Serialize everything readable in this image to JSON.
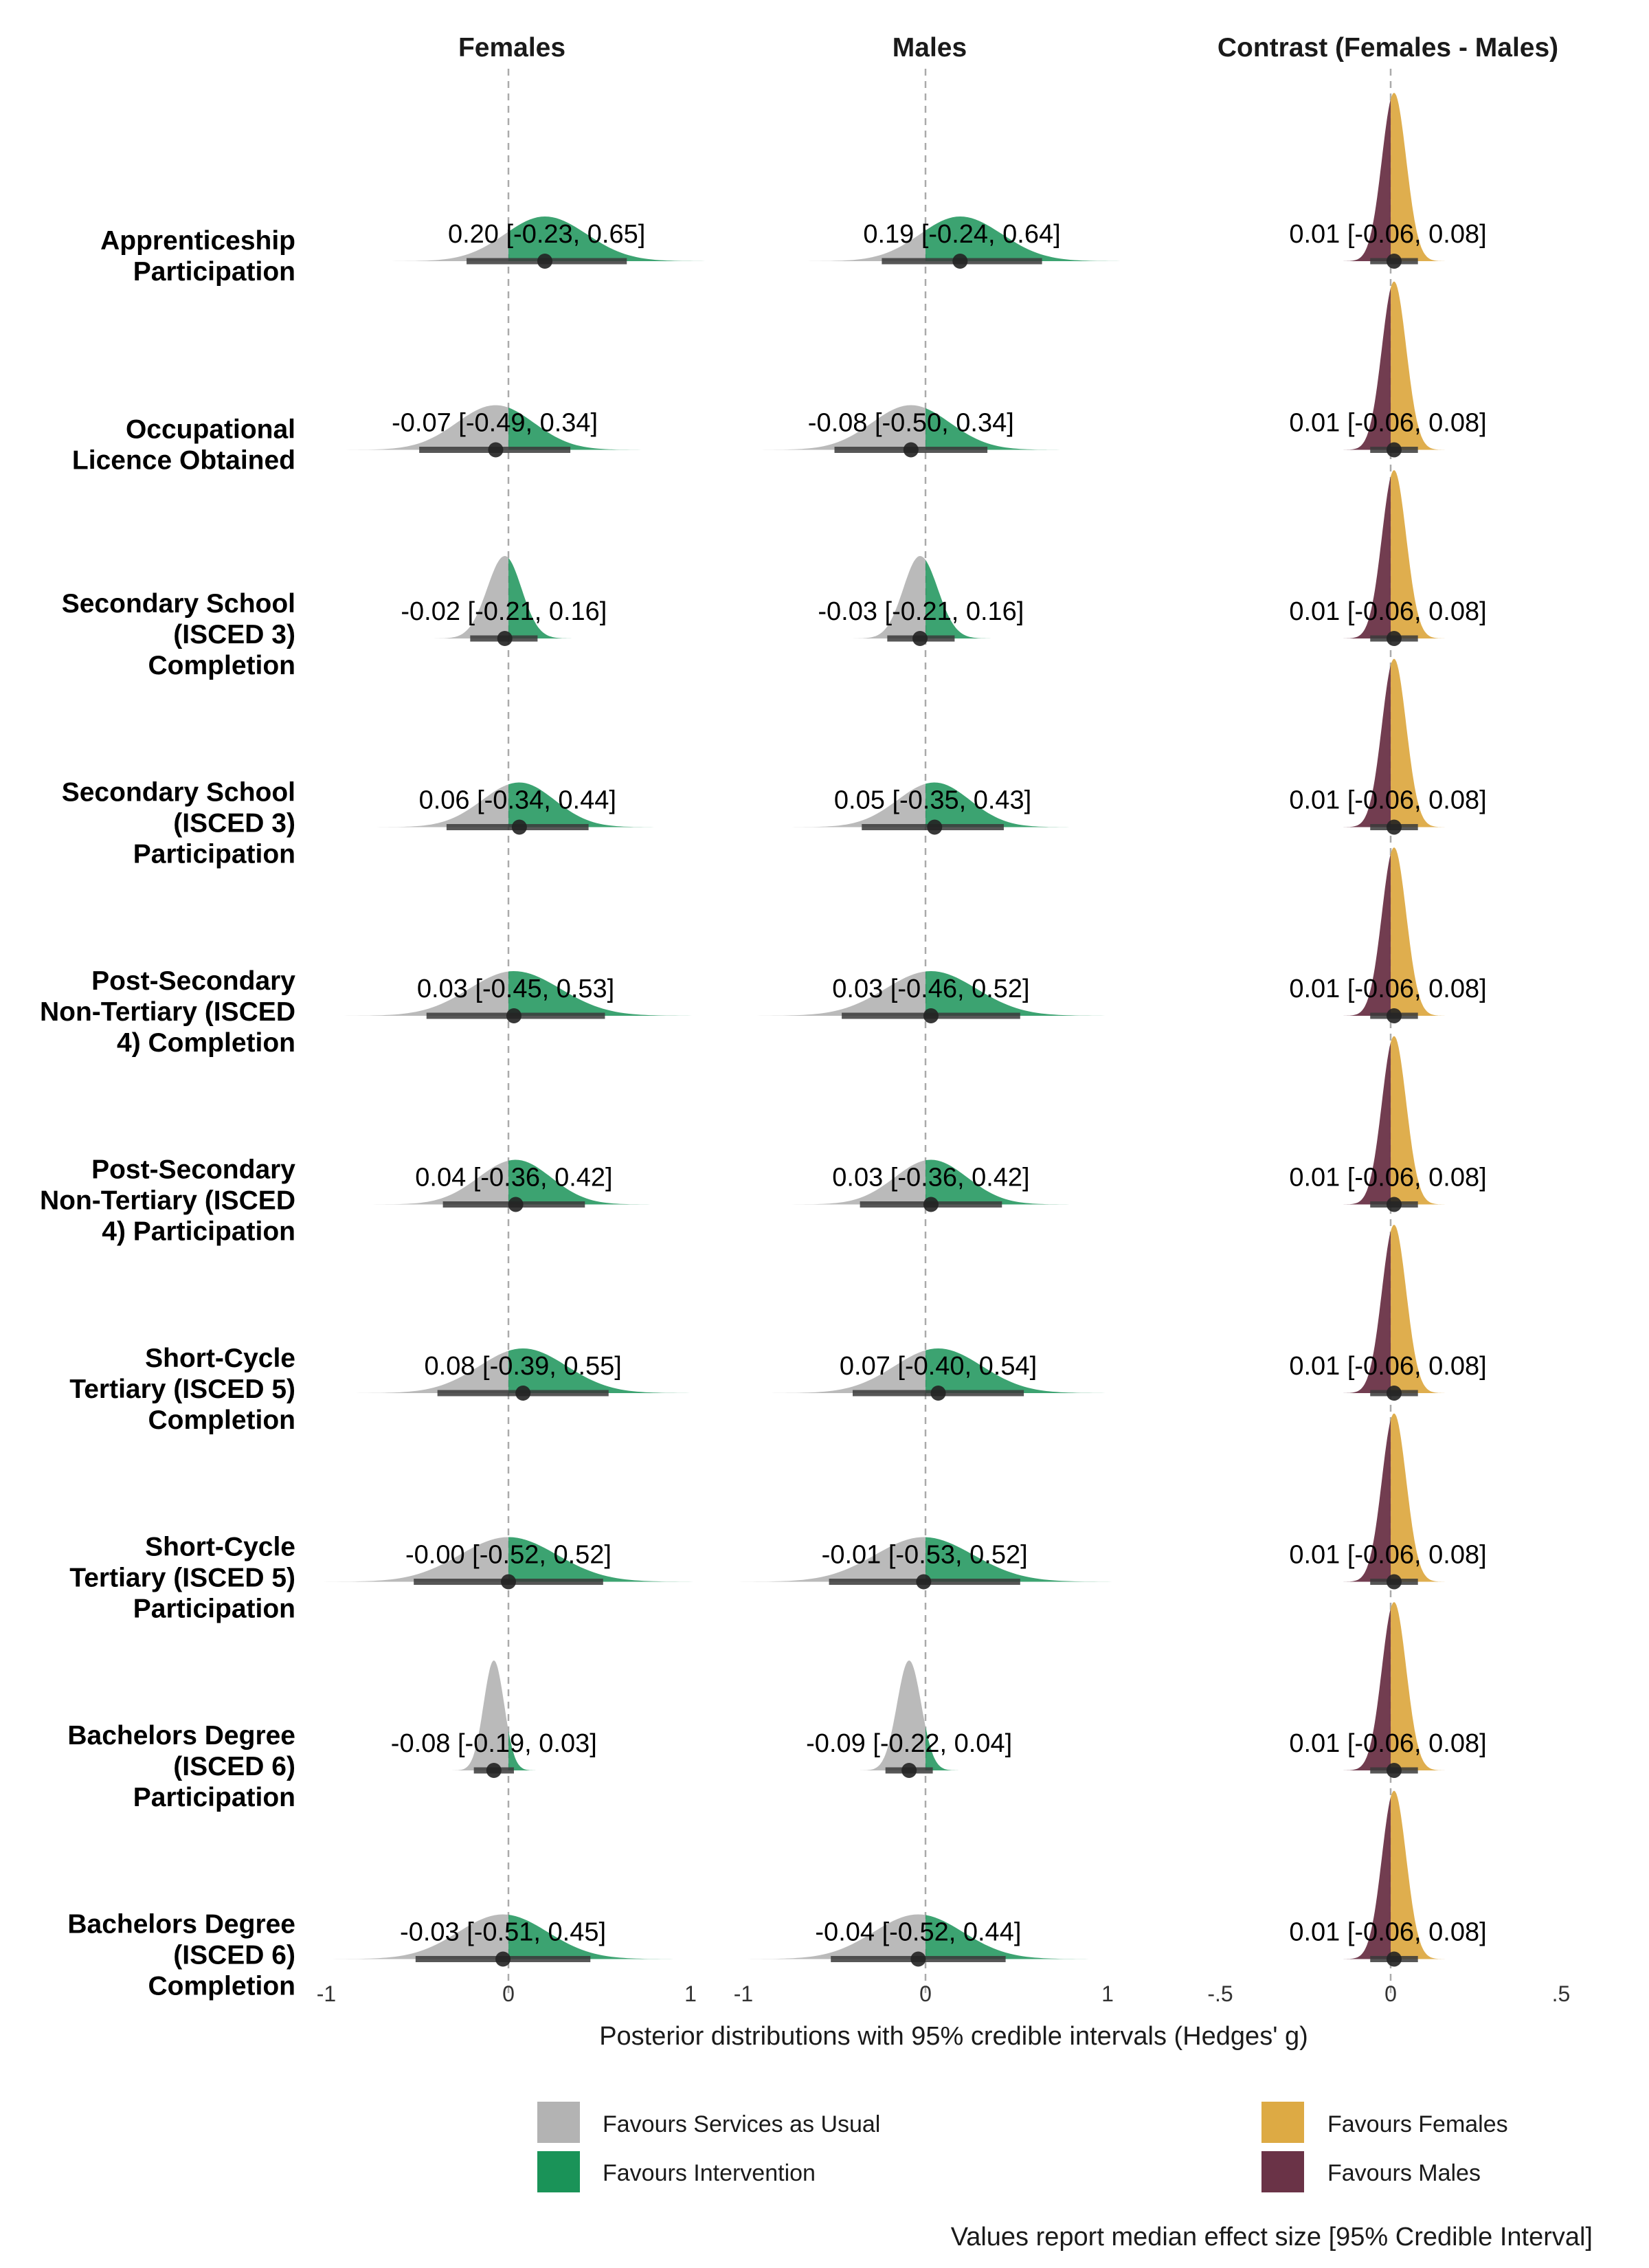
{
  "colors": {
    "services_as_usual": "#b3b3b3",
    "intervention": "#1a9358",
    "females": "#ddaa44",
    "males": "#6a3347",
    "interval": "#3a3a3a",
    "zero_line": "#aaaaaa"
  },
  "chart_data": {
    "type": "density-forest",
    "panels": [
      {
        "key": "females",
        "title": "Females",
        "xlim": [
          -1,
          1
        ],
        "ticks": [
          "-1",
          "0",
          "1"
        ],
        "tick_values": [
          -1,
          0,
          1
        ]
      },
      {
        "key": "males",
        "title": "Males",
        "xlim": [
          -1,
          1
        ],
        "ticks": [
          "-1",
          "0",
          "1"
        ],
        "tick_values": [
          -1,
          0,
          1
        ]
      },
      {
        "key": "contrast",
        "title": "Contrast (Females - Males)",
        "xlim": [
          -0.5,
          0.5
        ],
        "ticks": [
          "-.5",
          "0",
          ".5"
        ],
        "tick_values": [
          -0.5,
          0,
          0.5
        ]
      }
    ],
    "xlabel": "Posterior distributions with 95% credible intervals (Hedges' g)",
    "outcomes": [
      {
        "label": [
          "Apprenticeship",
          "Participation"
        ],
        "females": {
          "median": 0.2,
          "lo": -0.23,
          "hi": 0.65,
          "text": "0.20 [-0.23, 0.65]"
        },
        "males": {
          "median": 0.19,
          "lo": -0.24,
          "hi": 0.64,
          "text": "0.19 [-0.24, 0.64]"
        },
        "contrast": {
          "median": 0.01,
          "lo": -0.06,
          "hi": 0.08,
          "text": "0.01 [-0.06, 0.08]"
        }
      },
      {
        "label": [
          "Occupational",
          "Licence Obtained"
        ],
        "females": {
          "median": -0.07,
          "lo": -0.49,
          "hi": 0.34,
          "text": "-0.07 [-0.49, 0.34]"
        },
        "males": {
          "median": -0.08,
          "lo": -0.5,
          "hi": 0.34,
          "text": "-0.08 [-0.50, 0.34]"
        },
        "contrast": {
          "median": 0.01,
          "lo": -0.06,
          "hi": 0.08,
          "text": "0.01 [-0.06, 0.08]"
        }
      },
      {
        "label": [
          "Secondary School",
          "(ISCED 3)",
          "Completion"
        ],
        "females": {
          "median": -0.02,
          "lo": -0.21,
          "hi": 0.16,
          "text": "-0.02 [-0.21, 0.16]"
        },
        "males": {
          "median": -0.03,
          "lo": -0.21,
          "hi": 0.16,
          "text": "-0.03 [-0.21, 0.16]"
        },
        "contrast": {
          "median": 0.01,
          "lo": -0.06,
          "hi": 0.08,
          "text": "0.01 [-0.06, 0.08]"
        }
      },
      {
        "label": [
          "Secondary School",
          "(ISCED 3)",
          "Participation"
        ],
        "females": {
          "median": 0.06,
          "lo": -0.34,
          "hi": 0.44,
          "text": "0.06 [-0.34, 0.44]"
        },
        "males": {
          "median": 0.05,
          "lo": -0.35,
          "hi": 0.43,
          "text": "0.05 [-0.35, 0.43]"
        },
        "contrast": {
          "median": 0.01,
          "lo": -0.06,
          "hi": 0.08,
          "text": "0.01 [-0.06, 0.08]"
        }
      },
      {
        "label": [
          "Post-Secondary",
          "Non-Tertiary (ISCED",
          "4) Completion"
        ],
        "females": {
          "median": 0.03,
          "lo": -0.45,
          "hi": 0.53,
          "text": "0.03 [-0.45, 0.53]"
        },
        "males": {
          "median": 0.03,
          "lo": -0.46,
          "hi": 0.52,
          "text": "0.03 [-0.46, 0.52]"
        },
        "contrast": {
          "median": 0.01,
          "lo": -0.06,
          "hi": 0.08,
          "text": "0.01 [-0.06, 0.08]"
        }
      },
      {
        "label": [
          "Post-Secondary",
          "Non-Tertiary (ISCED",
          "4) Participation"
        ],
        "females": {
          "median": 0.04,
          "lo": -0.36,
          "hi": 0.42,
          "text": "0.04 [-0.36, 0.42]"
        },
        "males": {
          "median": 0.03,
          "lo": -0.36,
          "hi": 0.42,
          "text": "0.03 [-0.36, 0.42]"
        },
        "contrast": {
          "median": 0.01,
          "lo": -0.06,
          "hi": 0.08,
          "text": "0.01 [-0.06, 0.08]"
        }
      },
      {
        "label": [
          "Short-Cycle",
          "Tertiary (ISCED 5)",
          "Completion"
        ],
        "females": {
          "median": 0.08,
          "lo": -0.39,
          "hi": 0.55,
          "text": "0.08 [-0.39, 0.55]"
        },
        "males": {
          "median": 0.07,
          "lo": -0.4,
          "hi": 0.54,
          "text": "0.07 [-0.40, 0.54]"
        },
        "contrast": {
          "median": 0.01,
          "lo": -0.06,
          "hi": 0.08,
          "text": "0.01 [-0.06, 0.08]"
        }
      },
      {
        "label": [
          "Short-Cycle",
          "Tertiary (ISCED 5)",
          "Participation"
        ],
        "females": {
          "median": 0.0,
          "lo": -0.52,
          "hi": 0.52,
          "text": "-0.00 [-0.52, 0.52]"
        },
        "males": {
          "median": -0.01,
          "lo": -0.53,
          "hi": 0.52,
          "text": "-0.01 [-0.53, 0.52]"
        },
        "contrast": {
          "median": 0.01,
          "lo": -0.06,
          "hi": 0.08,
          "text": "0.01 [-0.06, 0.08]"
        }
      },
      {
        "label": [
          "Bachelors Degree",
          "(ISCED 6)",
          "Participation"
        ],
        "females": {
          "median": -0.08,
          "lo": -0.19,
          "hi": 0.03,
          "text": "-0.08 [-0.19, 0.03]"
        },
        "males": {
          "median": -0.09,
          "lo": -0.22,
          "hi": 0.04,
          "text": "-0.09 [-0.22, 0.04]"
        },
        "contrast": {
          "median": 0.01,
          "lo": -0.06,
          "hi": 0.08,
          "text": "0.01 [-0.06, 0.08]"
        }
      },
      {
        "label": [
          "Bachelors Degree",
          "(ISCED 6)",
          "Completion"
        ],
        "females": {
          "median": -0.03,
          "lo": -0.51,
          "hi": 0.45,
          "text": "-0.03 [-0.51, 0.45]"
        },
        "males": {
          "median": -0.04,
          "lo": -0.52,
          "hi": 0.44,
          "text": "-0.04 [-0.52, 0.44]"
        },
        "contrast": {
          "median": 0.01,
          "lo": -0.06,
          "hi": 0.08,
          "text": "0.01 [-0.06, 0.08]"
        }
      }
    ],
    "legend": [
      {
        "label": "Favours Services as Usual",
        "color": "#b3b3b3"
      },
      {
        "label": "Favours Intervention",
        "color": "#1a9358"
      },
      {
        "label": "Favours Females",
        "color": "#ddaa44"
      },
      {
        "label": "Favours Males",
        "color": "#6a3347"
      }
    ],
    "footnote": "Values report median effect size [95% Credible Interval]"
  }
}
